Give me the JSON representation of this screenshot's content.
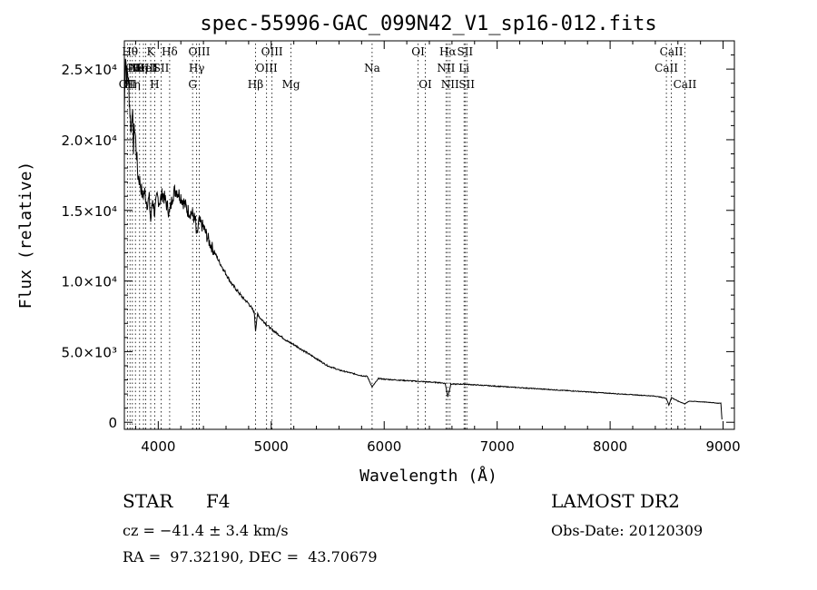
{
  "chart_data": {
    "type": "line",
    "title": "spec-55996-GAC_099N42_V1_sp16-012.fits",
    "xlabel": "Wavelength (Å)",
    "ylabel": "Flux (relative)",
    "xlim": [
      3700,
      9100
    ],
    "ylim": [
      -500,
      27000
    ],
    "x_ticks": [
      4000,
      5000,
      6000,
      7000,
      8000,
      9000
    ],
    "x_tick_labels": [
      "4000",
      "5000",
      "6000",
      "7000",
      "8000",
      "9000"
    ],
    "y_ticks": [
      0,
      5000,
      10000,
      15000,
      20000,
      25000
    ],
    "y_tick_labels": [
      "0",
      "5.0×10³",
      "1.0×10⁴",
      "1.5×10⁴",
      "2.0×10⁴",
      "2.5×10⁴"
    ],
    "grid": false,
    "series": [
      {
        "x": [
          3700,
          3710,
          3720,
          3730,
          3740,
          3750,
          3760,
          3770,
          3780,
          3790,
          3800,
          3820,
          3840,
          3860,
          3880,
          3900,
          3920,
          3933,
          3950,
          3968,
          3990,
          4010,
          4040,
          4070,
          4101,
          4130,
          4160,
          4180,
          4200,
          4230,
          4260,
          4300,
          4330,
          4340,
          4360,
          4400,
          4450,
          4500,
          4550,
          4600,
          4650,
          4700,
          4750,
          4800,
          4850,
          4861,
          4880,
          4900,
          4950,
          5000,
          5050,
          5100,
          5150,
          5200,
          5300,
          5400,
          5500,
          5600,
          5700,
          5800,
          5850,
          5893,
          5950,
          6000,
          6100,
          6200,
          6300,
          6400,
          6500,
          6540,
          6563,
          6590,
          6700,
          6800,
          7000,
          7200,
          7400,
          7600,
          7800,
          8000,
          8200,
          8400,
          8498,
          8520,
          8542,
          8600,
          8662,
          8700,
          8800,
          8900,
          8950,
          8980,
          8990
        ],
        "y": [
          22000,
          26200,
          24500,
          24800,
          23500,
          22000,
          20500,
          22500,
          19500,
          21000,
          20000,
          17500,
          17000,
          16000,
          16300,
          15500,
          15800,
          14200,
          15800,
          14800,
          16000,
          15600,
          16200,
          15500,
          14800,
          16200,
          16500,
          16200,
          16000,
          15500,
          15000,
          14800,
          14200,
          13000,
          14200,
          13800,
          12800,
          12000,
          11200,
          10500,
          9800,
          9300,
          8800,
          8400,
          7800,
          6500,
          7700,
          7400,
          7000,
          6600,
          6300,
          6000,
          5700,
          5500,
          5000,
          4500,
          4000,
          3700,
          3500,
          3300,
          3250,
          2500,
          3100,
          3050,
          3000,
          2950,
          2900,
          2850,
          2800,
          2750,
          1800,
          2700,
          2700,
          2650,
          2550,
          2450,
          2350,
          2250,
          2150,
          2050,
          1950,
          1850,
          1700,
          1200,
          1750,
          1500,
          1300,
          1500,
          1450,
          1400,
          1350,
          1350,
          200
        ]
      }
    ],
    "lines": [
      {
        "wl": 3727,
        "label": "OII",
        "row": 3
      },
      {
        "wl": 3750,
        "label": "Hθ",
        "row": 1
      },
      {
        "wl": 3771,
        "label": "Hη",
        "row": 3
      },
      {
        "wl": 3798,
        "label": "Hθ",
        "row": 2
      },
      {
        "wl": 3835,
        "label": "Hη",
        "row": 2
      },
      {
        "wl": 3869,
        "label": "NeIII",
        "row": 2
      },
      {
        "wl": 3889,
        "label": "HeI",
        "row": 2
      },
      {
        "wl": 3933,
        "label": "K",
        "row": 1
      },
      {
        "wl": 3968,
        "label": "H",
        "row": 3
      },
      {
        "wl": 4026,
        "label": "SII",
        "row": 2
      },
      {
        "wl": 4101,
        "label": "Hδ",
        "row": 1
      },
      {
        "wl": 4304,
        "label": "G",
        "row": 3
      },
      {
        "wl": 4340,
        "label": "Hγ",
        "row": 2
      },
      {
        "wl": 4363,
        "label": "OIII",
        "row": 1
      },
      {
        "wl": 4861,
        "label": "Hβ",
        "row": 3
      },
      {
        "wl": 4959,
        "label": "OIII",
        "row": 2
      },
      {
        "wl": 5007,
        "label": "OIII",
        "row": 1
      },
      {
        "wl": 5175,
        "label": "Mg",
        "row": 3
      },
      {
        "wl": 5893,
        "label": "Na",
        "row": 2
      },
      {
        "wl": 6300,
        "label": "OI",
        "row": 1
      },
      {
        "wl": 6364,
        "label": "OI",
        "row": 3
      },
      {
        "wl": 6548,
        "label": "NII",
        "row": 2
      },
      {
        "wl": 6563,
        "label": "Hα",
        "row": 1
      },
      {
        "wl": 6583,
        "label": "NII",
        "row": 3
      },
      {
        "wl": 6707,
        "label": "Li",
        "row": 2
      },
      {
        "wl": 6716,
        "label": "SII",
        "row": 1
      },
      {
        "wl": 6731,
        "label": "SII",
        "row": 3
      },
      {
        "wl": 8498,
        "label": "CaII",
        "row": 2
      },
      {
        "wl": 8542,
        "label": "CaII",
        "row": 1
      },
      {
        "wl": 8662,
        "label": "CaII",
        "row": 3
      }
    ]
  },
  "info": {
    "object_class": "STAR",
    "subclass": "F4",
    "survey": "LAMOST DR2",
    "redshift_text": "cz = −41.4 ± 3.4 km/s",
    "obs_date_text": "Obs-Date: 20120309",
    "coords_text": "RA =  97.32190, DEC =  43.70679"
  }
}
